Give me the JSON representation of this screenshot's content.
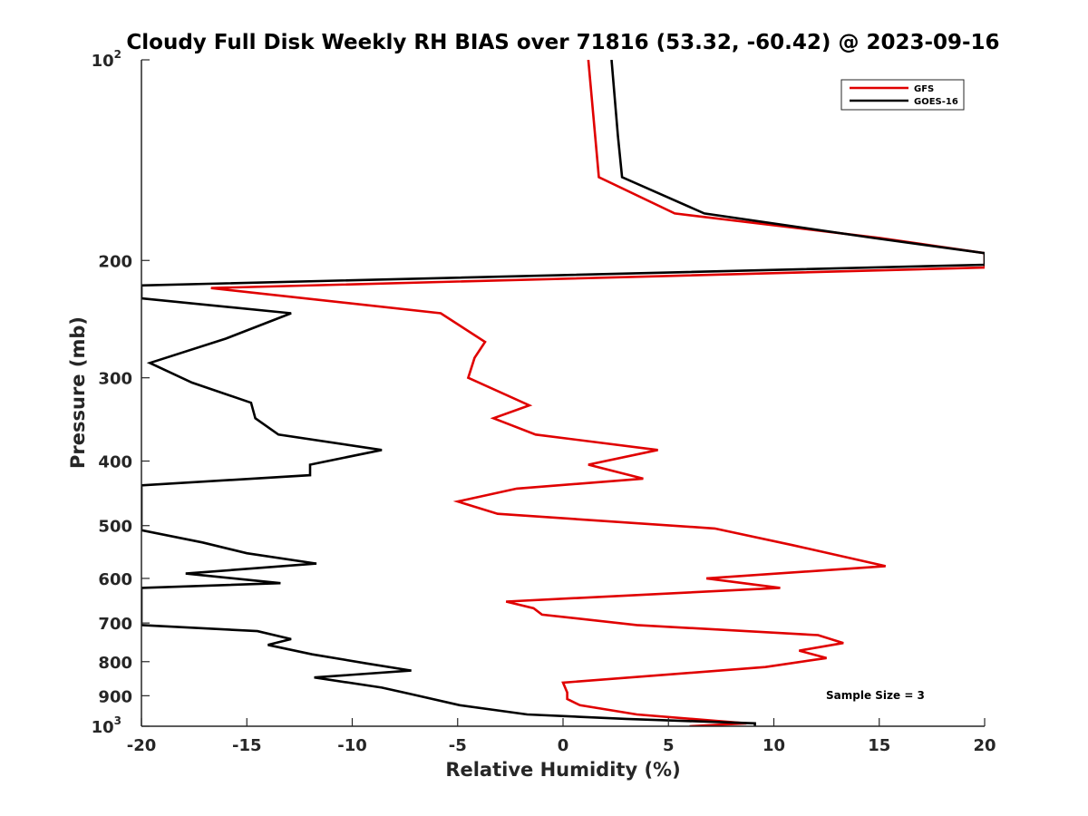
{
  "chart_data": {
    "type": "line",
    "title": "Cloudy Full Disk Weekly RH BIAS over 71816 (53.32, -60.42) @ 2023-09-16",
    "xlabel": "Relative Humidity (%)",
    "ylabel": "Pressure (mb)",
    "xlim": [
      -20,
      20
    ],
    "ylim": [
      100,
      1000
    ],
    "y_scale": "log",
    "y_reversed": true,
    "grid": false,
    "legend_position": "top-right",
    "x_ticks": [
      {
        "value": -20,
        "label": "-20"
      },
      {
        "value": -15,
        "label": "-15"
      },
      {
        "value": -10,
        "label": "-10"
      },
      {
        "value": -5,
        "label": "-5"
      },
      {
        "value": 0,
        "label": "0"
      },
      {
        "value": 5,
        "label": "5"
      },
      {
        "value": 10,
        "label": "10"
      },
      {
        "value": 15,
        "label": "15"
      },
      {
        "value": 20,
        "label": "20"
      }
    ],
    "y_ticks": [
      {
        "value": 100,
        "base": "10",
        "exp": "2"
      },
      {
        "value": 200,
        "label": "200"
      },
      {
        "value": 300,
        "label": "300"
      },
      {
        "value": 400,
        "label": "400"
      },
      {
        "value": 500,
        "label": "500"
      },
      {
        "value": 600,
        "label": "600"
      },
      {
        "value": 700,
        "label": "700"
      },
      {
        "value": 800,
        "label": "800"
      },
      {
        "value": 900,
        "label": "900"
      },
      {
        "value": 1000,
        "base": "10",
        "exp": "3"
      }
    ],
    "annotation": "Sample Size = 3",
    "series": [
      {
        "name": "GFS",
        "color": "#e00000",
        "points": [
          [
            1.2,
            100
          ],
          [
            1.7,
            150
          ],
          [
            5.3,
            170
          ],
          [
            15.0,
            185
          ],
          [
            20.0,
            195
          ],
          [
            20.0,
            205
          ],
          [
            -16.7,
            220
          ],
          [
            -5.8,
            240
          ],
          [
            -3.7,
            265
          ],
          [
            -4.2,
            280
          ],
          [
            -4.5,
            300
          ],
          [
            -1.6,
            330
          ],
          [
            -3.3,
            345
          ],
          [
            -1.3,
            365
          ],
          [
            4.5,
            385
          ],
          [
            1.2,
            405
          ],
          [
            3.8,
            425
          ],
          [
            -2.2,
            440
          ],
          [
            -5.0,
            460
          ],
          [
            -3.1,
            480
          ],
          [
            7.2,
            505
          ],
          [
            10.9,
            535
          ],
          [
            15.3,
            575
          ],
          [
            6.8,
            600
          ],
          [
            10.3,
            620
          ],
          [
            -2.7,
            650
          ],
          [
            -1.4,
            665
          ],
          [
            -1.0,
            680
          ],
          [
            3.5,
            705
          ],
          [
            12.1,
            730
          ],
          [
            13.3,
            750
          ],
          [
            11.2,
            770
          ],
          [
            12.5,
            790
          ],
          [
            9.6,
            815
          ],
          [
            0.0,
            860
          ],
          [
            0.2,
            890
          ],
          [
            0.2,
            910
          ],
          [
            0.8,
            930
          ],
          [
            3.5,
            960
          ],
          [
            8.7,
            990
          ],
          [
            6.0,
            1000
          ]
        ]
      },
      {
        "name": "GOES-16",
        "color": "#000000",
        "points": [
          [
            2.3,
            100
          ],
          [
            2.6,
            130
          ],
          [
            2.8,
            150
          ],
          [
            6.7,
            170
          ],
          [
            14.7,
            185
          ],
          [
            20.0,
            195
          ],
          [
            20.0,
            203
          ],
          [
            -20.0,
            218
          ],
          [
            -20.0,
            228
          ],
          [
            -12.9,
            240
          ],
          [
            -16.0,
            262
          ],
          [
            -19.6,
            285
          ],
          [
            -17.6,
            305
          ],
          [
            -14.8,
            327
          ],
          [
            -14.6,
            345
          ],
          [
            -13.5,
            365
          ],
          [
            -8.6,
            385
          ],
          [
            -12.0,
            405
          ],
          [
            -12.0,
            420
          ],
          [
            -20.0,
            435
          ],
          [
            -20.0,
            508
          ],
          [
            -17.1,
            530
          ],
          [
            -15.0,
            550
          ],
          [
            -11.7,
            570
          ],
          [
            -17.9,
            590
          ],
          [
            -13.4,
            610
          ],
          [
            -20.0,
            620
          ],
          [
            -20.0,
            705
          ],
          [
            -14.5,
            720
          ],
          [
            -12.9,
            740
          ],
          [
            -14.0,
            755
          ],
          [
            -11.9,
            780
          ],
          [
            -9.3,
            805
          ],
          [
            -7.2,
            825
          ],
          [
            -11.8,
            845
          ],
          [
            -8.6,
            875
          ],
          [
            -7.2,
            895
          ],
          [
            -4.9,
            930
          ],
          [
            -1.7,
            960
          ],
          [
            3.0,
            975
          ],
          [
            9.1,
            990
          ],
          [
            9.1,
            1000
          ]
        ]
      }
    ]
  }
}
